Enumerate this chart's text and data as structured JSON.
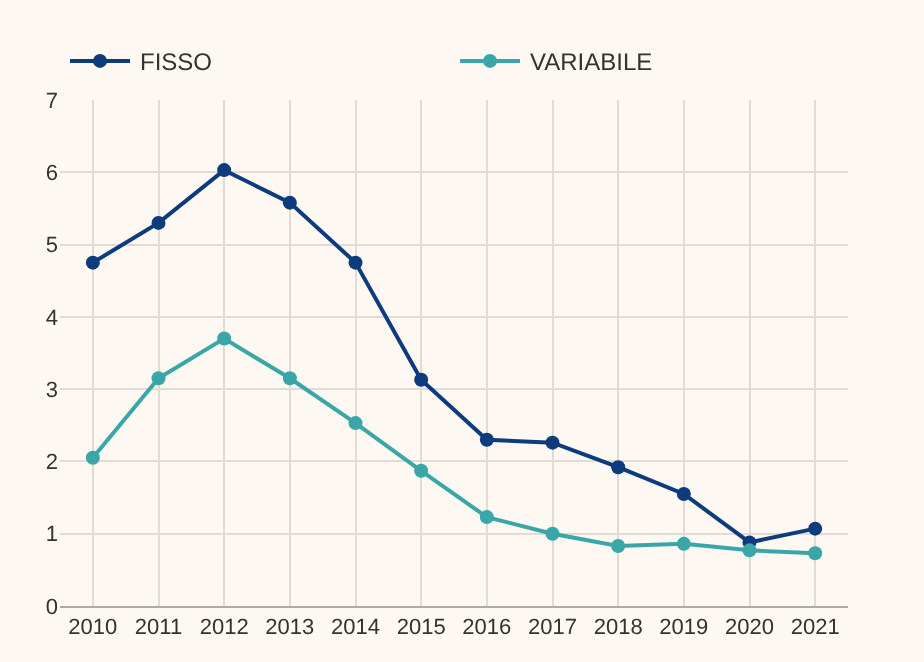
{
  "chart_data": {
    "type": "line",
    "categories": [
      "2010",
      "2011",
      "2012",
      "2013",
      "2014",
      "2015",
      "2016",
      "2017",
      "2018",
      "2019",
      "2020",
      "2021"
    ],
    "series": [
      {
        "name": "FISSO",
        "color": "#0d3b7e",
        "values": [
          4.75,
          5.3,
          6.03,
          5.58,
          4.75,
          3.13,
          2.3,
          2.26,
          1.92,
          1.55,
          0.88,
          1.07
        ]
      },
      {
        "name": "VARIABILE",
        "color": "#3aa6a8",
        "values": [
          2.05,
          3.15,
          3.7,
          3.15,
          2.53,
          1.87,
          1.23,
          1.0,
          0.83,
          0.86,
          0.77,
          0.73
        ]
      }
    ],
    "ylim": [
      0,
      7
    ],
    "yticks": [
      0,
      1,
      2,
      3,
      4,
      5,
      6,
      7
    ],
    "grid": true,
    "legend": "top left",
    "marker": "circle",
    "line_style": "solid"
  }
}
